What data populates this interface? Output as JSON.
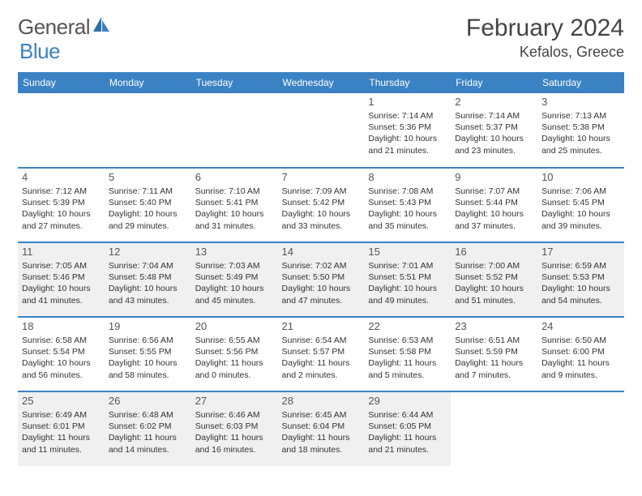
{
  "logo": {
    "word1": "General",
    "word2": "Blue"
  },
  "title": "February 2024",
  "location": "Kefalos, Greece",
  "colors": {
    "header_bg": "#3b82c4",
    "header_text": "#ffffff",
    "row_border": "#3b82c4",
    "alt_row_bg": "#f0f0f0",
    "page_bg": "#ffffff",
    "daynum_color": "#555555",
    "text_color": "#333333",
    "logo_gray": "#555555",
    "logo_blue": "#3b82c4"
  },
  "typography": {
    "title_fontsize": 30,
    "location_fontsize": 18,
    "weekday_fontsize": 12,
    "daynum_fontsize": 13,
    "cell_fontsize": 10.5,
    "logo_fontsize": 26
  },
  "weekdays": [
    "Sunday",
    "Monday",
    "Tuesday",
    "Wednesday",
    "Thursday",
    "Friday",
    "Saturday"
  ],
  "weeks": [
    {
      "alt": false,
      "days": [
        null,
        null,
        null,
        null,
        {
          "n": "1",
          "sunrise": "Sunrise: 7:14 AM",
          "sunset": "Sunset: 5:36 PM",
          "daylight": "Daylight: 10 hours and 21 minutes."
        },
        {
          "n": "2",
          "sunrise": "Sunrise: 7:14 AM",
          "sunset": "Sunset: 5:37 PM",
          "daylight": "Daylight: 10 hours and 23 minutes."
        },
        {
          "n": "3",
          "sunrise": "Sunrise: 7:13 AM",
          "sunset": "Sunset: 5:38 PM",
          "daylight": "Daylight: 10 hours and 25 minutes."
        }
      ]
    },
    {
      "alt": false,
      "days": [
        {
          "n": "4",
          "sunrise": "Sunrise: 7:12 AM",
          "sunset": "Sunset: 5:39 PM",
          "daylight": "Daylight: 10 hours and 27 minutes."
        },
        {
          "n": "5",
          "sunrise": "Sunrise: 7:11 AM",
          "sunset": "Sunset: 5:40 PM",
          "daylight": "Daylight: 10 hours and 29 minutes."
        },
        {
          "n": "6",
          "sunrise": "Sunrise: 7:10 AM",
          "sunset": "Sunset: 5:41 PM",
          "daylight": "Daylight: 10 hours and 31 minutes."
        },
        {
          "n": "7",
          "sunrise": "Sunrise: 7:09 AM",
          "sunset": "Sunset: 5:42 PM",
          "daylight": "Daylight: 10 hours and 33 minutes."
        },
        {
          "n": "8",
          "sunrise": "Sunrise: 7:08 AM",
          "sunset": "Sunset: 5:43 PM",
          "daylight": "Daylight: 10 hours and 35 minutes."
        },
        {
          "n": "9",
          "sunrise": "Sunrise: 7:07 AM",
          "sunset": "Sunset: 5:44 PM",
          "daylight": "Daylight: 10 hours and 37 minutes."
        },
        {
          "n": "10",
          "sunrise": "Sunrise: 7:06 AM",
          "sunset": "Sunset: 5:45 PM",
          "daylight": "Daylight: 10 hours and 39 minutes."
        }
      ]
    },
    {
      "alt": true,
      "days": [
        {
          "n": "11",
          "sunrise": "Sunrise: 7:05 AM",
          "sunset": "Sunset: 5:46 PM",
          "daylight": "Daylight: 10 hours and 41 minutes."
        },
        {
          "n": "12",
          "sunrise": "Sunrise: 7:04 AM",
          "sunset": "Sunset: 5:48 PM",
          "daylight": "Daylight: 10 hours and 43 minutes."
        },
        {
          "n": "13",
          "sunrise": "Sunrise: 7:03 AM",
          "sunset": "Sunset: 5:49 PM",
          "daylight": "Daylight: 10 hours and 45 minutes."
        },
        {
          "n": "14",
          "sunrise": "Sunrise: 7:02 AM",
          "sunset": "Sunset: 5:50 PM",
          "daylight": "Daylight: 10 hours and 47 minutes."
        },
        {
          "n": "15",
          "sunrise": "Sunrise: 7:01 AM",
          "sunset": "Sunset: 5:51 PM",
          "daylight": "Daylight: 10 hours and 49 minutes."
        },
        {
          "n": "16",
          "sunrise": "Sunrise: 7:00 AM",
          "sunset": "Sunset: 5:52 PM",
          "daylight": "Daylight: 10 hours and 51 minutes."
        },
        {
          "n": "17",
          "sunrise": "Sunrise: 6:59 AM",
          "sunset": "Sunset: 5:53 PM",
          "daylight": "Daylight: 10 hours and 54 minutes."
        }
      ]
    },
    {
      "alt": false,
      "days": [
        {
          "n": "18",
          "sunrise": "Sunrise: 6:58 AM",
          "sunset": "Sunset: 5:54 PM",
          "daylight": "Daylight: 10 hours and 56 minutes."
        },
        {
          "n": "19",
          "sunrise": "Sunrise: 6:56 AM",
          "sunset": "Sunset: 5:55 PM",
          "daylight": "Daylight: 10 hours and 58 minutes."
        },
        {
          "n": "20",
          "sunrise": "Sunrise: 6:55 AM",
          "sunset": "Sunset: 5:56 PM",
          "daylight": "Daylight: 11 hours and 0 minutes."
        },
        {
          "n": "21",
          "sunrise": "Sunrise: 6:54 AM",
          "sunset": "Sunset: 5:57 PM",
          "daylight": "Daylight: 11 hours and 2 minutes."
        },
        {
          "n": "22",
          "sunrise": "Sunrise: 6:53 AM",
          "sunset": "Sunset: 5:58 PM",
          "daylight": "Daylight: 11 hours and 5 minutes."
        },
        {
          "n": "23",
          "sunrise": "Sunrise: 6:51 AM",
          "sunset": "Sunset: 5:59 PM",
          "daylight": "Daylight: 11 hours and 7 minutes."
        },
        {
          "n": "24",
          "sunrise": "Sunrise: 6:50 AM",
          "sunset": "Sunset: 6:00 PM",
          "daylight": "Daylight: 11 hours and 9 minutes."
        }
      ]
    },
    {
      "alt": true,
      "days": [
        {
          "n": "25",
          "sunrise": "Sunrise: 6:49 AM",
          "sunset": "Sunset: 6:01 PM",
          "daylight": "Daylight: 11 hours and 11 minutes."
        },
        {
          "n": "26",
          "sunrise": "Sunrise: 6:48 AM",
          "sunset": "Sunset: 6:02 PM",
          "daylight": "Daylight: 11 hours and 14 minutes."
        },
        {
          "n": "27",
          "sunrise": "Sunrise: 6:46 AM",
          "sunset": "Sunset: 6:03 PM",
          "daylight": "Daylight: 11 hours and 16 minutes."
        },
        {
          "n": "28",
          "sunrise": "Sunrise: 6:45 AM",
          "sunset": "Sunset: 6:04 PM",
          "daylight": "Daylight: 11 hours and 18 minutes."
        },
        {
          "n": "29",
          "sunrise": "Sunrise: 6:44 AM",
          "sunset": "Sunset: 6:05 PM",
          "daylight": "Daylight: 11 hours and 21 minutes."
        },
        null,
        null
      ]
    }
  ]
}
